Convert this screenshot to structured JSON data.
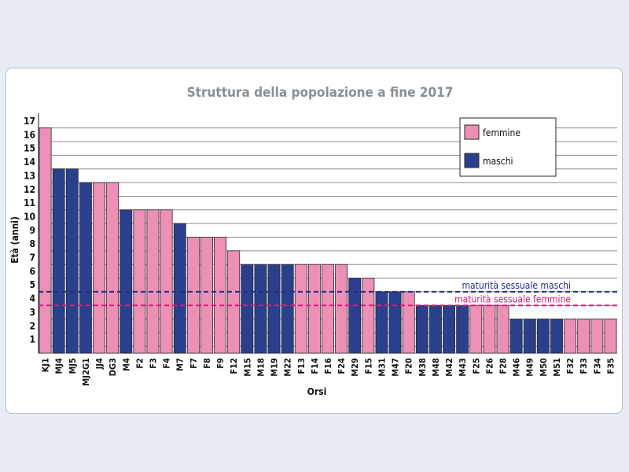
{
  "chart_data": {
    "type": "bar",
    "title": "Struttura della popolazione a fine 2017",
    "xlabel": "Orsi",
    "ylabel": "Età (anni)",
    "ylim": [
      0,
      17
    ],
    "yticks": [
      1,
      2,
      3,
      4,
      5,
      6,
      7,
      8,
      9,
      10,
      11,
      12,
      13,
      14,
      15,
      16,
      17
    ],
    "grid": true,
    "legend_position": "top-right",
    "colors": {
      "femmine": "#ee8fb6",
      "maschi": "#2a3f8d",
      "ref_maschi": "#1f2f8f",
      "ref_femmine": "#e0187a"
    },
    "series": [
      {
        "name": "femmine",
        "key": "f"
      },
      {
        "name": "maschi",
        "key": "m"
      }
    ],
    "bars": [
      {
        "label": "KJ1",
        "value": 16.5,
        "sex": "f"
      },
      {
        "label": "MJ4",
        "value": 13.5,
        "sex": "m"
      },
      {
        "label": "MJ5",
        "value": 13.5,
        "sex": "m"
      },
      {
        "label": "MJ2G1",
        "value": 12.5,
        "sex": "m"
      },
      {
        "label": "JJ4",
        "value": 12.5,
        "sex": "f"
      },
      {
        "label": "DG3",
        "value": 12.5,
        "sex": "f"
      },
      {
        "label": "M4",
        "value": 10.5,
        "sex": "m"
      },
      {
        "label": "F2",
        "value": 10.5,
        "sex": "f"
      },
      {
        "label": "F3",
        "value": 10.5,
        "sex": "f"
      },
      {
        "label": "F4",
        "value": 10.5,
        "sex": "f"
      },
      {
        "label": "M7",
        "value": 9.5,
        "sex": "m"
      },
      {
        "label": "F7",
        "value": 8.5,
        "sex": "f"
      },
      {
        "label": "F8",
        "value": 8.5,
        "sex": "f"
      },
      {
        "label": "F9",
        "value": 8.5,
        "sex": "f"
      },
      {
        "label": "F12",
        "value": 7.5,
        "sex": "f"
      },
      {
        "label": "M15",
        "value": 6.5,
        "sex": "m"
      },
      {
        "label": "M18",
        "value": 6.5,
        "sex": "m"
      },
      {
        "label": "M19",
        "value": 6.5,
        "sex": "m"
      },
      {
        "label": "M22",
        "value": 6.5,
        "sex": "m"
      },
      {
        "label": "F13",
        "value": 6.5,
        "sex": "f"
      },
      {
        "label": "F14",
        "value": 6.5,
        "sex": "f"
      },
      {
        "label": "F16",
        "value": 6.5,
        "sex": "f"
      },
      {
        "label": "F24",
        "value": 6.5,
        "sex": "f"
      },
      {
        "label": "M29",
        "value": 5.5,
        "sex": "m"
      },
      {
        "label": "F15",
        "value": 5.5,
        "sex": "f"
      },
      {
        "label": "M31",
        "value": 4.5,
        "sex": "m"
      },
      {
        "label": "M47",
        "value": 4.5,
        "sex": "m"
      },
      {
        "label": "F20",
        "value": 4.5,
        "sex": "f"
      },
      {
        "label": "M38",
        "value": 3.5,
        "sex": "m"
      },
      {
        "label": "M48",
        "value": 3.5,
        "sex": "m"
      },
      {
        "label": "M42",
        "value": 3.5,
        "sex": "m"
      },
      {
        "label": "M43",
        "value": 3.5,
        "sex": "m"
      },
      {
        "label": "F25",
        "value": 3.5,
        "sex": "f"
      },
      {
        "label": "F26",
        "value": 3.5,
        "sex": "f"
      },
      {
        "label": "F28",
        "value": 3.5,
        "sex": "f"
      },
      {
        "label": "M46",
        "value": 2.5,
        "sex": "m"
      },
      {
        "label": "M49",
        "value": 2.5,
        "sex": "m"
      },
      {
        "label": "M50",
        "value": 2.5,
        "sex": "m"
      },
      {
        "label": "M51",
        "value": 2.5,
        "sex": "m"
      },
      {
        "label": "F32",
        "value": 2.5,
        "sex": "f"
      },
      {
        "label": "F33",
        "value": 2.5,
        "sex": "f"
      },
      {
        "label": "F34",
        "value": 2.5,
        "sex": "f"
      },
      {
        "label": "F35",
        "value": 2.5,
        "sex": "f"
      }
    ],
    "reference_lines": [
      {
        "label": "maturità sessuale maschi",
        "value": 4.5,
        "color_key": "ref_maschi"
      },
      {
        "label": "maturità sessuale femmine",
        "value": 3.5,
        "color_key": "ref_femmine"
      }
    ]
  }
}
